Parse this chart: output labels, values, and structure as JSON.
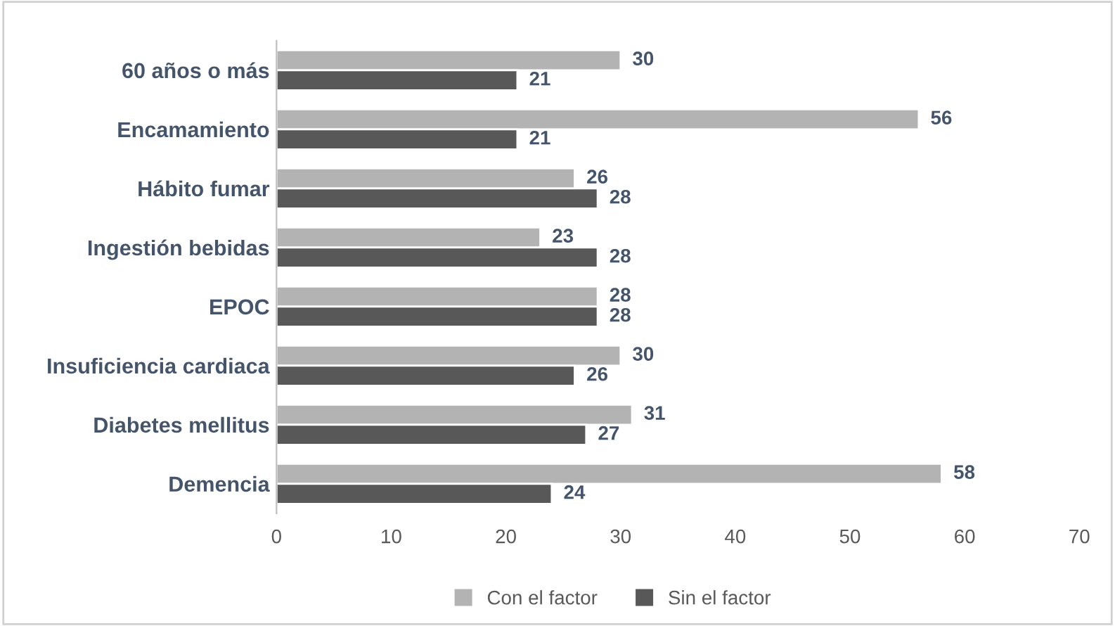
{
  "chart_data": {
    "type": "bar",
    "orientation": "horizontal",
    "categories": [
      "60 años o más",
      "Encamamiento",
      "Hábito fumar",
      "Ingestión bebidas",
      "EPOC",
      "Insuficiencia cardiaca",
      "Diabetes mellitus",
      "Demencia"
    ],
    "series": [
      {
        "name": "Con el factor",
        "color": "#b3b3b3",
        "values": [
          30,
          56,
          26,
          23,
          28,
          30,
          31,
          58
        ]
      },
      {
        "name": "Sin el factor",
        "color": "#585858",
        "values": [
          21,
          21,
          28,
          28,
          28,
          26,
          27,
          24
        ]
      }
    ],
    "xlim": [
      0,
      70
    ],
    "xticks": [
      0,
      10,
      20,
      30,
      40,
      50,
      60,
      70
    ],
    "data_labels": true,
    "legend": "bottom",
    "grid": false
  }
}
